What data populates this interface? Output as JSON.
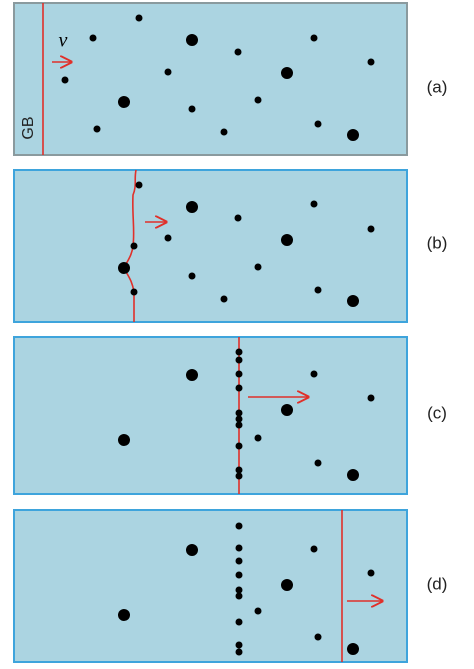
{
  "velocity_label": "v",
  "boundary_label": "GB",
  "panels": [
    {
      "label": "(a)"
    },
    {
      "label": "(b)"
    },
    {
      "label": "(c)"
    },
    {
      "label": "(d)"
    }
  ]
}
